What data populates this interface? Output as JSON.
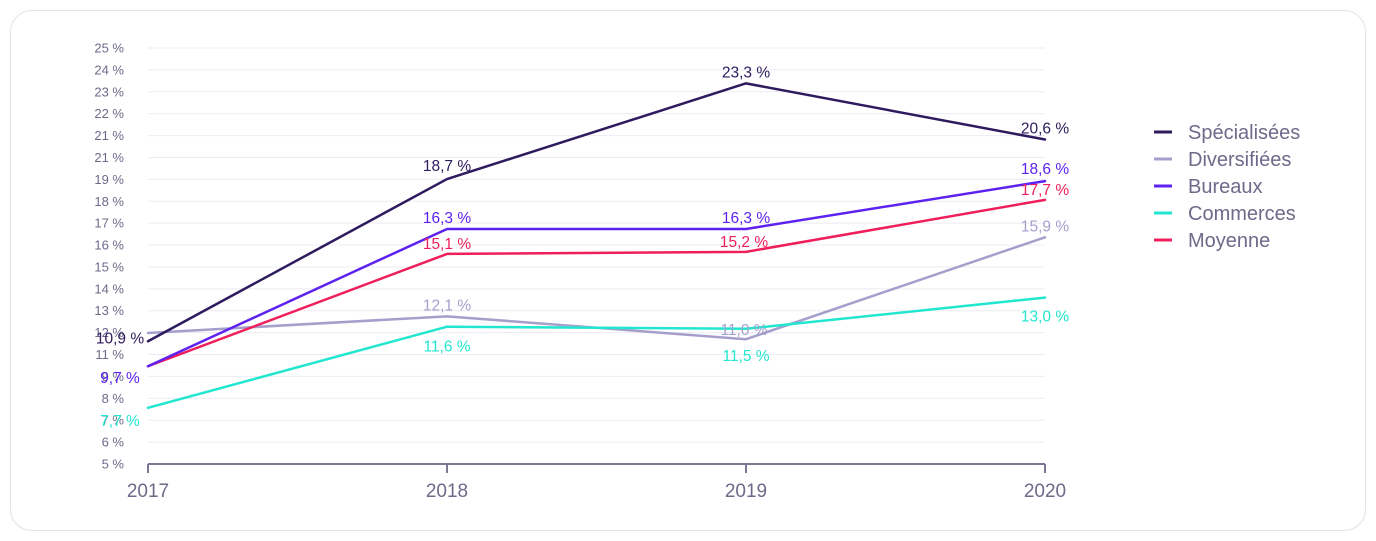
{
  "chart_data": {
    "type": "line",
    "title": "",
    "xlabel": "",
    "ylabel": "",
    "x": [
      "2017",
      "2018",
      "2019",
      "2020"
    ],
    "y_tick_labels": [
      "25 %",
      "24 %",
      "23 %",
      "22 %",
      "21 %",
      "21 %",
      "19 %",
      "18 %",
      "17 %",
      "16 %",
      "15 %",
      "14 %",
      "13 %",
      "12 %",
      "11 %",
      "9 %",
      "8 %",
      "7 %",
      "6 %",
      "5 %"
    ],
    "ylim": [
      5,
      25
    ],
    "grid": true,
    "legend_position": "right",
    "series": [
      {
        "name": "Spécialisées",
        "color": "#2d1b5e",
        "values": [
          10.9,
          18.7,
          23.3,
          20.6
        ],
        "labels": [
          "10,9 %",
          "18,7 %",
          "23,3 %",
          "20,6 %"
        ]
      },
      {
        "name": "Diversifiées",
        "color": "#a59fcc",
        "values": [
          11.3,
          12.1,
          11.0,
          15.9
        ],
        "labels": [
          "",
          "12,1 %",
          "11,0 %",
          "15,9 %"
        ]
      },
      {
        "name": "Bureaux",
        "color": "#5d22f0",
        "values": [
          9.7,
          16.3,
          16.3,
          18.6
        ],
        "labels": [
          "9,7 %",
          "16,3 %",
          "16,3 %",
          "18,6 %"
        ]
      },
      {
        "name": "Commerces",
        "color": "#22e6cf",
        "values": [
          7.7,
          11.6,
          11.5,
          13.0
        ],
        "labels": [
          "7,7 %",
          "11,6 %",
          "11,5 %",
          "13,0 %"
        ]
      },
      {
        "name": "Moyenne",
        "color": "#ef1f5b",
        "values": [
          9.7,
          15.1,
          15.2,
          17.7
        ],
        "labels": [
          "",
          "15,1 %",
          "15,2 %",
          "17,7 %"
        ]
      }
    ]
  }
}
